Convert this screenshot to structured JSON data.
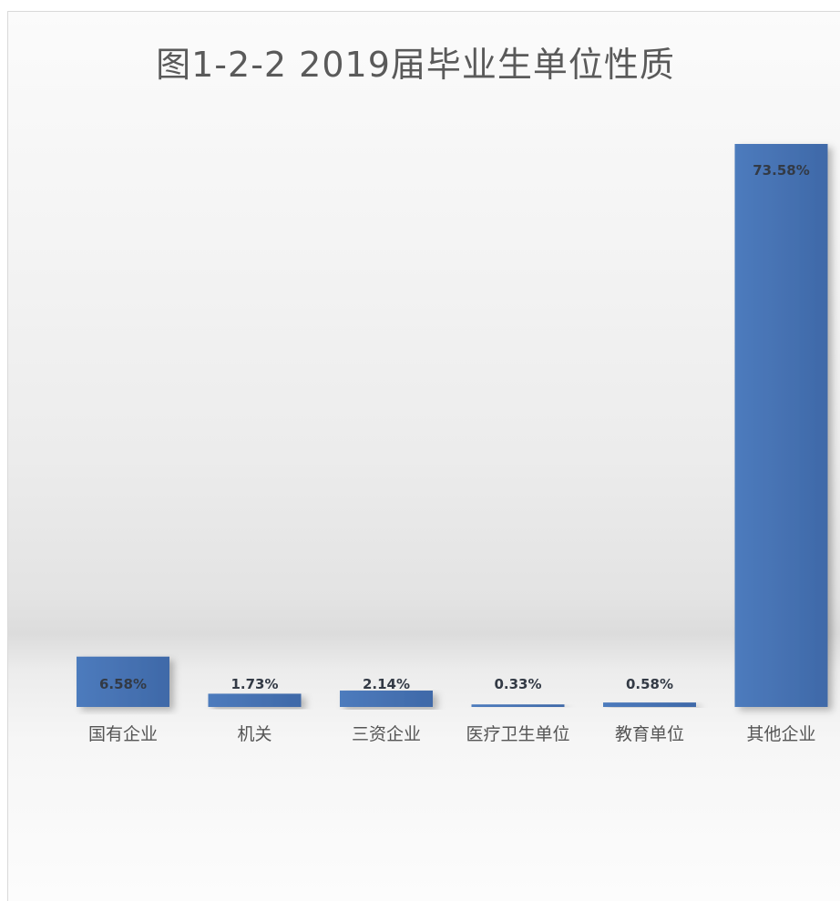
{
  "chart_data": {
    "type": "bar",
    "title": "图1-2-2 2019届毕业生单位性质",
    "categories": [
      "国有企业",
      "机关",
      "三资企业",
      "医疗卫生单位",
      "教育单位",
      "其他企业"
    ],
    "values": [
      6.58,
      1.73,
      2.14,
      0.33,
      0.58,
      73.58
    ],
    "value_labels": [
      "6.58%",
      "1.73%",
      "2.14%",
      "0.33%",
      "0.58%",
      "73.58%"
    ],
    "value_unit": "%",
    "ylim": [
      0,
      73.58
    ],
    "grid": false,
    "legend": "none",
    "bar_color": "#4a75b4"
  }
}
